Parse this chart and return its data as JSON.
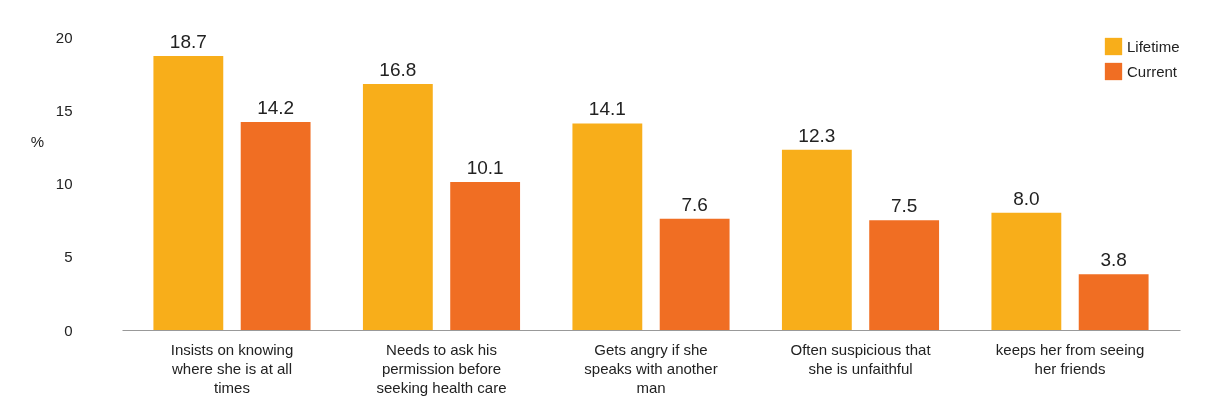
{
  "chart_data": {
    "type": "bar",
    "ylabel": "%",
    "categories": [
      "Insists on knowing where she is at all times",
      "Needs to ask his permission before seeking health care",
      "Gets angry if she speaks with another man",
      "Often suspicious that she is unfaithful",
      "keeps her from seeing her friends"
    ],
    "series": [
      {
        "name": "Lifetime",
        "color": "#f8ae1a",
        "values": [
          18.7,
          16.8,
          14.1,
          12.3,
          8.0
        ],
        "value_labels": [
          "18.7",
          "16.8",
          "14.1",
          "12.3",
          "8.0"
        ]
      },
      {
        "name": "Current",
        "color": "#f06e23",
        "values": [
          14.2,
          10.1,
          7.6,
          7.5,
          3.8
        ],
        "value_labels": [
          "14.2",
          "10.1",
          "7.6",
          "7.5",
          "3.8"
        ]
      }
    ],
    "ylim": [
      0,
      20
    ],
    "yticks": [
      0,
      5,
      10,
      15,
      20
    ],
    "legend": "top right"
  }
}
